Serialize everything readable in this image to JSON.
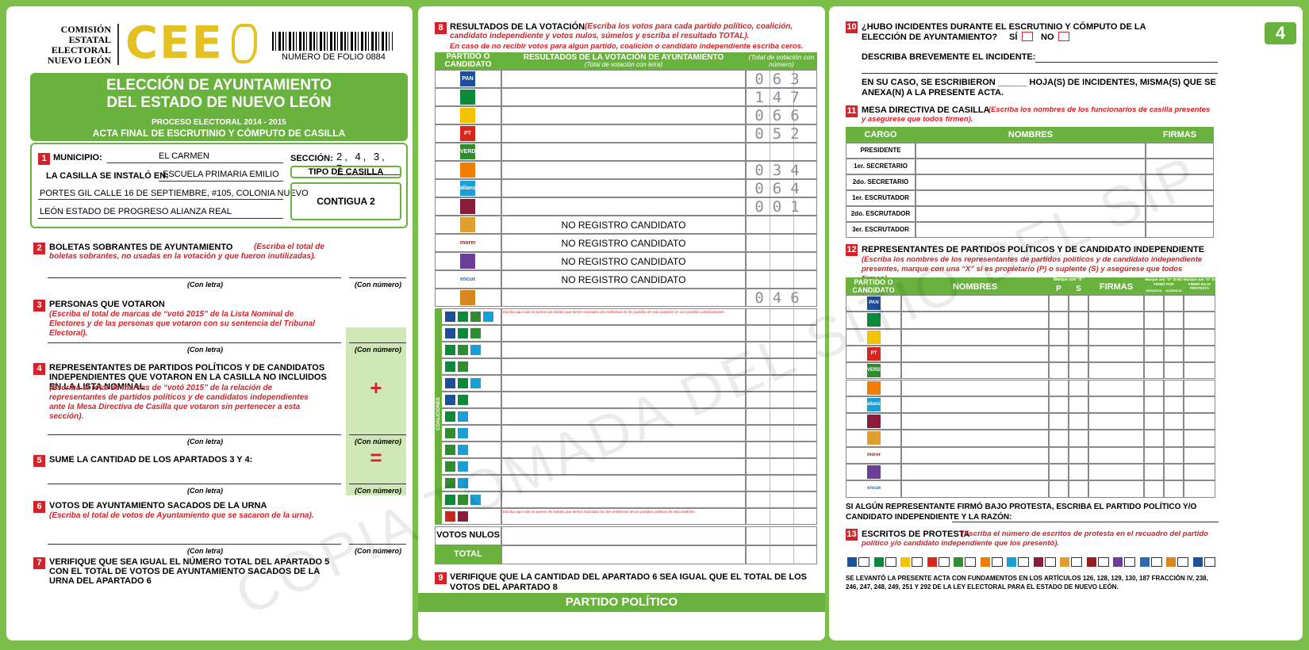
{
  "left": {
    "agency": [
      "COMISIÓN",
      "ESTATAL",
      "ELECTORAL",
      "NUEVO LEÓN"
    ],
    "logo": "CEE",
    "folio": "NUMERO DE FOLIO 0884",
    "title": [
      "ELECCIÓN DE AYUNTAMIENTO",
      "DEL ESTADO DE NUEVO LEÓN"
    ],
    "process": "PROCESO ELECTORAL 2014 - 2015",
    "subtitle": "ACTA FINAL DE ESCRUTINIO Y CÓMPUTO DE CASILLA",
    "s1": {
      "num": "1",
      "municipio_label": "MUNICIPIO:",
      "municipio": "EL CARMEN",
      "seccion_label": "SECCIÓN:",
      "seccion": "2, 4, 3, 7",
      "location_label": "LA CASILLA SE INSTALÓ EN:",
      "location": [
        "ESCUELA PRIMARIA EMILIO",
        "PORTES GIL CALLE 16 DE SEPTIEMBRE, #105, COLONIA NUEVO",
        "LEÓN ESTADO DE PROGRESO ALIANZA REAL"
      ],
      "tipo_label": "TIPO DE CASILLA",
      "tipo": "CONTIGUA 2"
    },
    "sections": [
      {
        "num": "2",
        "title": "BOLETAS SOBRANTES DE AYUNTAMIENTO",
        "note": "(Escriba el total de boletas sobrantes, no usadas en la votación y que fueron inutilizadas)."
      },
      {
        "num": "3",
        "title": "PERSONAS QUE VOTARON",
        "note": "(Escriba el total de marcas de “votó 2015” de la Lista Nominal de Electores y de las personas que votaron con su sentencia del Tribunal Electoral)."
      },
      {
        "num": "4",
        "title": "REPRESENTANTES DE PARTIDOS POLÍTICOS Y DE CANDIDATOS INDEPENDIENTES QUE VOTARON EN LA CASILLA NO INCLUIDOS EN LA LISTA NOMINAL",
        "note": "(Escriba el total de marcas de “votó 2015” de la relación de representantes de partidos políticos y de candidatos independientes ante la Mesa Directiva de Casilla que votaron sin pertenecer a esta sección)."
      },
      {
        "num": "5",
        "title": "SUME LA CANTIDAD DE LOS APARTADOS 3 Y 4:"
      },
      {
        "num": "6",
        "title": "VOTOS DE AYUNTAMIENTO SACADOS DE LA URNA",
        "note": "(Escriba el total de votos de Ayuntamiento que se sacaron de la urna)."
      },
      {
        "num": "7",
        "title": "VERIFIQUE QUE SEA IGUAL EL NÚMERO TOTAL DEL APARTADO 5 CON EL TOTAL DE VOTOS DE AYUNTAMIENTO SACADOS DE LA URNA DEL APARTADO 6"
      }
    ],
    "con_letra": "(Con letra)",
    "con_numero": "(Con número)",
    "plus": "+",
    "equals": "="
  },
  "middle": {
    "s8": {
      "num": "8",
      "title": "RESULTADOS DE LA VOTACIÓN",
      "note": "(Escriba los votos para cada partido político, coalición, candidato independiente y votos nulos, súmelos y escriba el resultado TOTAL).",
      "note2": "En caso de no recibir votos para algún partido, coalición o candidato independiente escriba ceros."
    },
    "headers": {
      "party": "PARTIDO O CANDIDATO",
      "result": "RESULTADOS DE LA VOTACIÓN DE AYUNTAMIENTO",
      "result_sub": "(Total de votación con letra)",
      "number": "(Total de votación con número)"
    },
    "parties": [
      {
        "color": "#1d4f9c",
        "label": "PAN",
        "votes": "063"
      },
      {
        "color": "#0b8a3c",
        "votes": "147"
      },
      {
        "color": "#f3c300",
        "votes": "066"
      },
      {
        "color": "#d8261d",
        "label": "PT",
        "votes": "052"
      },
      {
        "color": "#2f8c2f",
        "label": "VERDE"
      },
      {
        "color": "#f07e00",
        "votes": "034"
      },
      {
        "color": "#1a9ed6",
        "label": "alianza",
        "votes": "064"
      },
      {
        "color": "#8b1b3b",
        "votes": "001"
      },
      {
        "color": "#e0a030",
        "text": "NO REGISTRO CANDIDATO"
      },
      {
        "color": "#9b1c1c",
        "label": "morena",
        "text": "NO REGISTRO CANDIDATO"
      },
      {
        "color": "#6a3e98",
        "text": "NO REGISTRO CANDIDATO"
      },
      {
        "color": "#2b6cb0",
        "label": "encuentro",
        "text": "NO REGISTRO CANDIDATO"
      },
      {
        "color": "#d8861d",
        "votes": "046"
      }
    ],
    "coalition_label": "COALICIONES",
    "coalition_note": "Escriba aquí solo el número de boletas que tienen marcados los emblemas de los partidos de esta coalición en sus posibles combinaciones.",
    "coalition_note2": "Escriba aquí solo el número de boletas que tienen marcados los dos emblemas de los partidos políticos de esta coalición.",
    "nulos": "VOTOS NULOS",
    "total": "TOTAL",
    "s9": {
      "num": "9",
      "text": "VERIFIQUE QUE LA CANTIDAD DEL APARTADO 6 SEA IGUAL QUE EL TOTAL DE LOS VOTOS DEL APARTADO 8"
    },
    "footer": "PARTIDO POLÍTICO"
  },
  "right": {
    "page": "4",
    "s10": {
      "num": "10",
      "title": "¿HUBO INCIDENTES DURANTE EL ESCRUTINIO Y CÓMPUTO DE LA ELECCIÓN DE AYUNTAMIENTO?",
      "yes": "SÍ",
      "no": "NO",
      "describe": "DESCRIBA BREVEMENTE EL INCIDENTE:",
      "sheets": "EN SU CASO, SE ESCRIBIERON ______ HOJA(S) DE INCIDENTES, MISMA(S) QUE SE ANEXA(N) A LA PRESENTE ACTA."
    },
    "s11": {
      "num": "11",
      "title": "MESA DIRECTIVA DE CASILLA",
      "note": "(Escriba los nombres de los funcionarios de casilla presentes y asegúrese que todos firmen).",
      "headers": [
        "CARGO",
        "NOMBRES",
        "FIRMAS"
      ],
      "roles": [
        "PRESIDENTE",
        "1er. SECRETARIO",
        "2do. SECRETARIO",
        "1er. ESCRUTADOR",
        "2do. ESCRUTADOR",
        "3er. ESCRUTADOR"
      ]
    },
    "s12": {
      "num": "12",
      "title": "REPRESENTANTES DE PARTIDOS POLÍTICOS Y DE CANDIDATO INDEPENDIENTE",
      "note": "(Escriba los nombres de los representantes de partidos políticos y de candidato independiente presentes, marque con una “X” si es propietario (P) o suplente (S) y asegúrese que todos firmen).",
      "h_party": "PARTIDO O CANDIDATO",
      "h_names": "NOMBRES",
      "h_mark": "Marque con “X”",
      "h_p": "P",
      "h_s": "S",
      "h_sign": "FIRMAS",
      "h_nosign": "Marque con “X” SI NO FIRMÓ POR",
      "h_neg": "NEGATIVA",
      "h_aus": "AUSENCIA",
      "h_protest": "Marque con “X” SI FIRMÓ BAJO PROTESTA",
      "protest_text": "SI ALGÚN REPRESENTANTE FIRMÓ BAJO PROTESTA, ESCRIBA EL PARTIDO POLÍTICO Y/O CANDIDATO INDEPENDIENTE Y LA RAZÓN:"
    },
    "s13": {
      "num": "13",
      "title": "ESCRITOS DE PROTESTA",
      "note": "(Escriba el número de escritos de protesta en el recuadro del partido político y/o candidato independiente que los presentó)."
    },
    "legal": "SE LEVANTÓ LA PRESENTE ACTA CON FUNDAMENTOS EN LOS ARTÍCULOS 126, 128, 129, 130, 187 FRACCIÓN IV, 238, 246, 247, 248, 249, 251 Y 292 DE LA LEY ELECTORAL PARA EL ESTADO DE NUEVO LEÓN."
  },
  "watermark": "COPIA TOMADA DEL SITIO DEL SIP"
}
